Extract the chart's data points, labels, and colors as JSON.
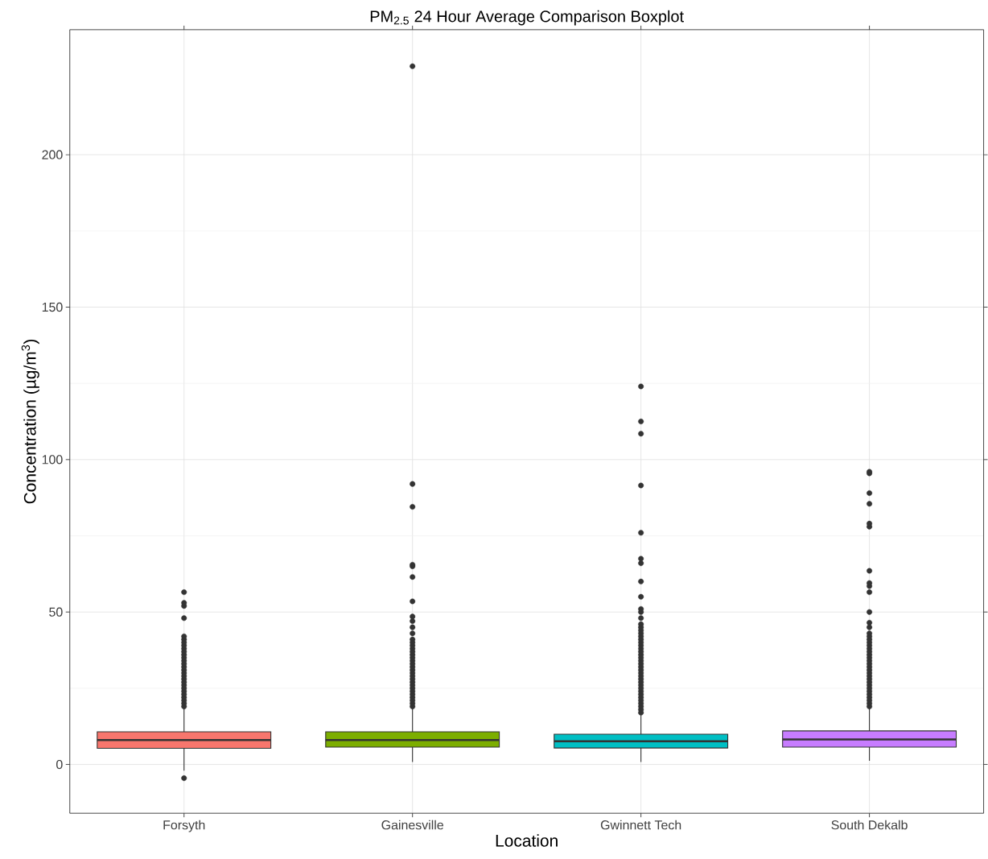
{
  "chart_data": {
    "type": "box",
    "title": "PM$_{2.5}$ 24 Hour Average Comparison Boxplot",
    "xlabel": "Location",
    "ylabel": "Concentration (µg/m$^{3}$)",
    "categories": [
      "Forsyth",
      "Gainesville",
      "Gwinnett Tech",
      "South Dekalb"
    ],
    "colors": [
      "#f8766d",
      "#7cae00",
      "#00bfc4",
      "#c77cff"
    ],
    "boxes": [
      {
        "low": -2,
        "q1": 5.3,
        "median": 8.0,
        "q3": 10.7,
        "high": 18.4,
        "outliers": [
          -4.5,
          19,
          20,
          21,
          22,
          23,
          24,
          25,
          26,
          27,
          28,
          29,
          30,
          31,
          32,
          33,
          34,
          35,
          36,
          37,
          38,
          39,
          40,
          41,
          42,
          48,
          52,
          53,
          56.5
        ]
      },
      {
        "low": 0.8,
        "q1": 5.7,
        "median": 8.0,
        "q3": 10.7,
        "high": 18.4,
        "outliers": [
          19,
          20,
          21,
          22,
          23,
          24,
          25,
          26,
          27,
          28,
          29,
          30,
          31,
          32,
          33,
          34,
          35,
          36,
          37,
          38,
          39,
          40,
          41,
          43,
          45,
          47,
          48.5,
          53.5,
          61.5,
          65,
          65.5,
          84.5,
          92,
          229
        ]
      },
      {
        "low": 0.8,
        "q1": 5.4,
        "median": 7.6,
        "q3": 9.9,
        "high": 16.2,
        "outliers": [
          17,
          18,
          19,
          20,
          21,
          22,
          23,
          24,
          25,
          26,
          27,
          28,
          29,
          30,
          31,
          32,
          33,
          34,
          35,
          36,
          37,
          38,
          39,
          40,
          41,
          42,
          43,
          44,
          45,
          46,
          48,
          50,
          51,
          55,
          60,
          66,
          67.5,
          76,
          91.5,
          108.5,
          112.5,
          124
        ]
      },
      {
        "low": 1.2,
        "q1": 5.7,
        "median": 8.2,
        "q3": 11.0,
        "high": 18.4,
        "outliers": [
          19,
          20,
          21,
          22,
          23,
          24,
          25,
          26,
          27,
          28,
          29,
          30,
          31,
          32,
          33,
          34,
          35,
          36,
          37,
          38,
          39,
          40,
          41,
          42,
          43,
          45,
          46.5,
          50,
          56.5,
          58.5,
          59.5,
          63.5,
          78,
          79,
          85.5,
          89,
          95.5,
          96
        ]
      }
    ],
    "ylim": [
      -16,
      241
    ],
    "yticks": [
      0,
      50,
      100,
      150,
      200
    ],
    "grid": true
  }
}
